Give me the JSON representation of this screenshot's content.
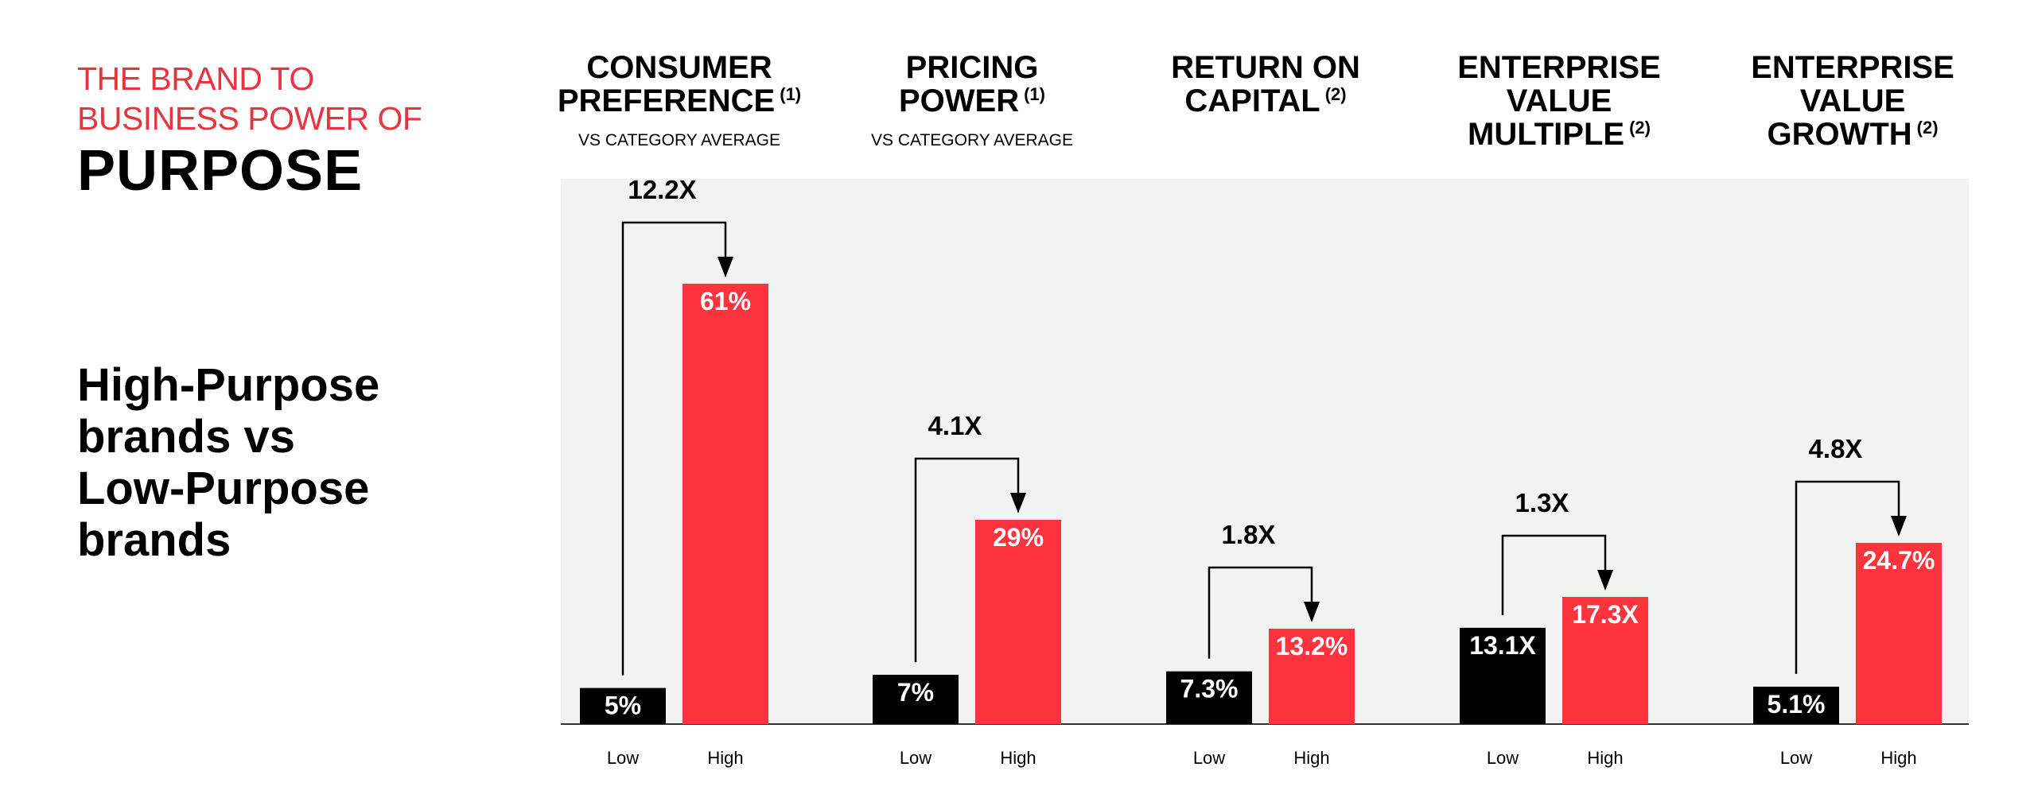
{
  "header": {
    "line1": "THE BRAND TO",
    "line2": "BUSINESS POWER OF",
    "line3": "PURPOSE"
  },
  "subhead": [
    "High-Purpose",
    "brands vs",
    "Low-Purpose",
    "brands"
  ],
  "colors": {
    "low": "#000000",
    "high": "#fd333e",
    "panel": "#f2f2f2",
    "accent_text": "#e8343f"
  },
  "chart_data": {
    "type": "bar",
    "categories": [
      "Low",
      "High"
    ],
    "groups": [
      {
        "title_lines": [
          "CONSUMER",
          "PREFERENCE"
        ],
        "footnote": "(1)",
        "subtitle": "VS CATEGORY AVERAGE",
        "low": 5,
        "high": 61,
        "low_label": "5%",
        "high_label": "61%",
        "multiplier": "12.2X"
      },
      {
        "title_lines": [
          "PRICING",
          "POWER"
        ],
        "footnote": "(1)",
        "subtitle": "VS CATEGORY AVERAGE",
        "low": 7,
        "high": 29,
        "low_label": "7%",
        "high_label": "29%",
        "multiplier": "4.1X"
      },
      {
        "title_lines": [
          "RETURN ON",
          "CAPITAL"
        ],
        "footnote": "(2)",
        "subtitle": "",
        "low": 7.3,
        "high": 13.2,
        "low_label": "7.3%",
        "high_label": "13.2%",
        "multiplier": "1.8X"
      },
      {
        "title_lines": [
          "ENTERPRISE",
          "VALUE",
          "MULTIPLE"
        ],
        "footnote": "(2)",
        "subtitle": "",
        "low": 13.1,
        "high": 17.3,
        "low_label": "13.1X",
        "high_label": "17.3X",
        "multiplier": "1.3X"
      },
      {
        "title_lines": [
          "ENTERPRISE",
          "VALUE",
          "GROWTH"
        ],
        "footnote": "(2)",
        "subtitle": "",
        "low": 5.1,
        "high": 24.7,
        "low_label": "5.1%",
        "high_label": "24.7%",
        "multiplier": "4.8X"
      }
    ]
  }
}
